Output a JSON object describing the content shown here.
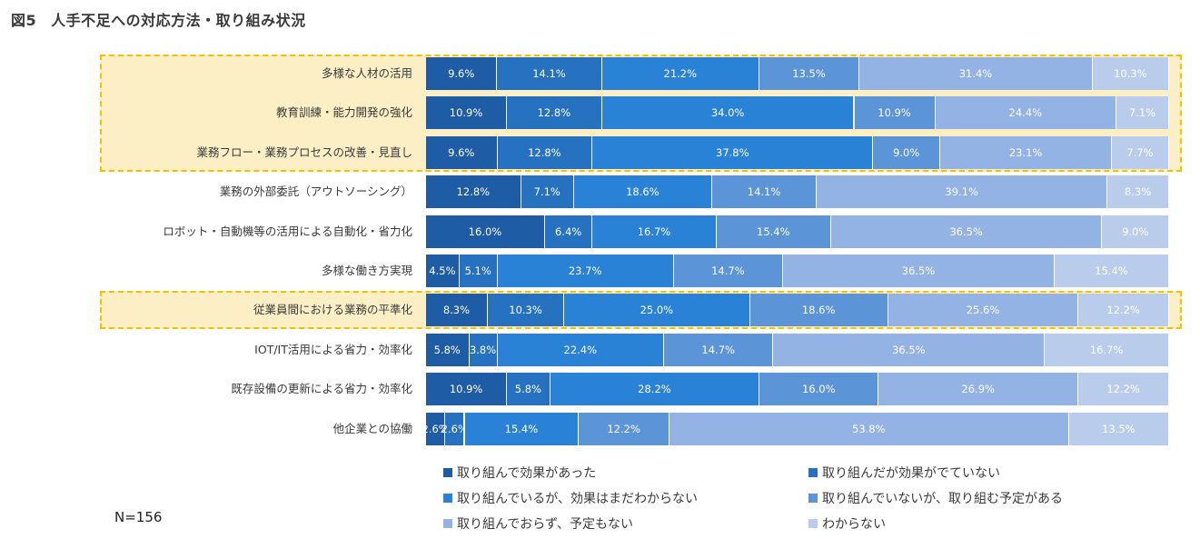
{
  "title": {
    "number": "図5",
    "text": "人手不足への対応方法・取り組み状況"
  },
  "sample_size": "N=156",
  "colors": [
    "#1f5ca6",
    "#2672c0",
    "#2a82d6",
    "#5c94d8",
    "#93b3e4",
    "#b9cceb"
  ],
  "chart_data": {
    "type": "bar",
    "orientation": "horizontal",
    "stacked": true,
    "percent": true,
    "categories": [
      "多様な人材の活用",
      "教育訓練・能力開発の強化",
      "業務フロー・業務プロセスの改善・見直し",
      "業務の外部委託（アウトソーシング）",
      "ロボット・自動機等の活用による自動化・省力化",
      "多様な働き方実現",
      "従業員間における業務の平準化",
      "IOT/IT活用による省力・効率化",
      "既存設備の更新による省力・効率化",
      "他企業との協働"
    ],
    "highlighted_groups": [
      [
        0,
        2
      ],
      [
        6,
        6
      ]
    ],
    "series": [
      {
        "name": "取り組んで効果があった",
        "values": [
          9.6,
          10.9,
          9.6,
          12.8,
          16.0,
          4.5,
          8.3,
          5.8,
          10.9,
          2.6
        ],
        "labels": [
          "9.6%",
          "10.9%",
          "9.6%",
          "12.8%",
          "16.0%",
          "4.5%",
          "8.3%",
          "5.8%",
          "10.9%",
          "2.6%"
        ]
      },
      {
        "name": "取り組んだが効果がでていない",
        "values": [
          14.1,
          12.8,
          12.8,
          7.1,
          6.4,
          5.1,
          10.3,
          3.8,
          5.8,
          2.6
        ],
        "labels": [
          "14.1%",
          "12.8%",
          "12.8%",
          "7.1%",
          "6.4%",
          "5.1%",
          "10.3%",
          "3.8%",
          "5.8%",
          "2.6%"
        ]
      },
      {
        "name": "取り組んでいるが、効果はまだわからない",
        "values": [
          21.2,
          34.0,
          37.8,
          18.6,
          16.7,
          23.7,
          25.0,
          22.4,
          28.2,
          15.4
        ],
        "labels": [
          "21.2%",
          "34.0%",
          "37.8%",
          "18.6%",
          "16.7%",
          "23.7%",
          "25.0%",
          "22.4%",
          "28.2%",
          "15.4%"
        ]
      },
      {
        "name": "取り組んでいないが、取り組む予定がある",
        "values": [
          13.5,
          10.9,
          9.0,
          14.1,
          15.4,
          14.7,
          18.6,
          14.7,
          16.0,
          12.2
        ],
        "labels": [
          "13.5%",
          "10.9%",
          "9.0%",
          "14.1%",
          "15.4%",
          "14.7%",
          "18.6%",
          "14.7%",
          "16.0%",
          "12.2%"
        ]
      },
      {
        "name": "取り組んでおらず、予定もない",
        "values": [
          31.4,
          24.4,
          23.1,
          39.1,
          36.5,
          36.5,
          25.6,
          36.5,
          26.9,
          53.8
        ],
        "labels": [
          "31.4%",
          "24.4%",
          "23.1%",
          "39.1%",
          "36.5%",
          "36.5%",
          "25.6%",
          "36.5%",
          "26.9%",
          "53.8%"
        ]
      },
      {
        "name": "わからない",
        "values": [
          10.3,
          7.1,
          7.7,
          8.3,
          9.0,
          15.4,
          12.2,
          16.7,
          12.2,
          13.5
        ],
        "labels": [
          "10.3%",
          "7.1%",
          "7.7%",
          "8.3%",
          "9.0%",
          "15.4%",
          "12.2%",
          "16.7%",
          "12.2%",
          "13.5%"
        ]
      }
    ],
    "legend_position": "bottom",
    "grid": false
  }
}
